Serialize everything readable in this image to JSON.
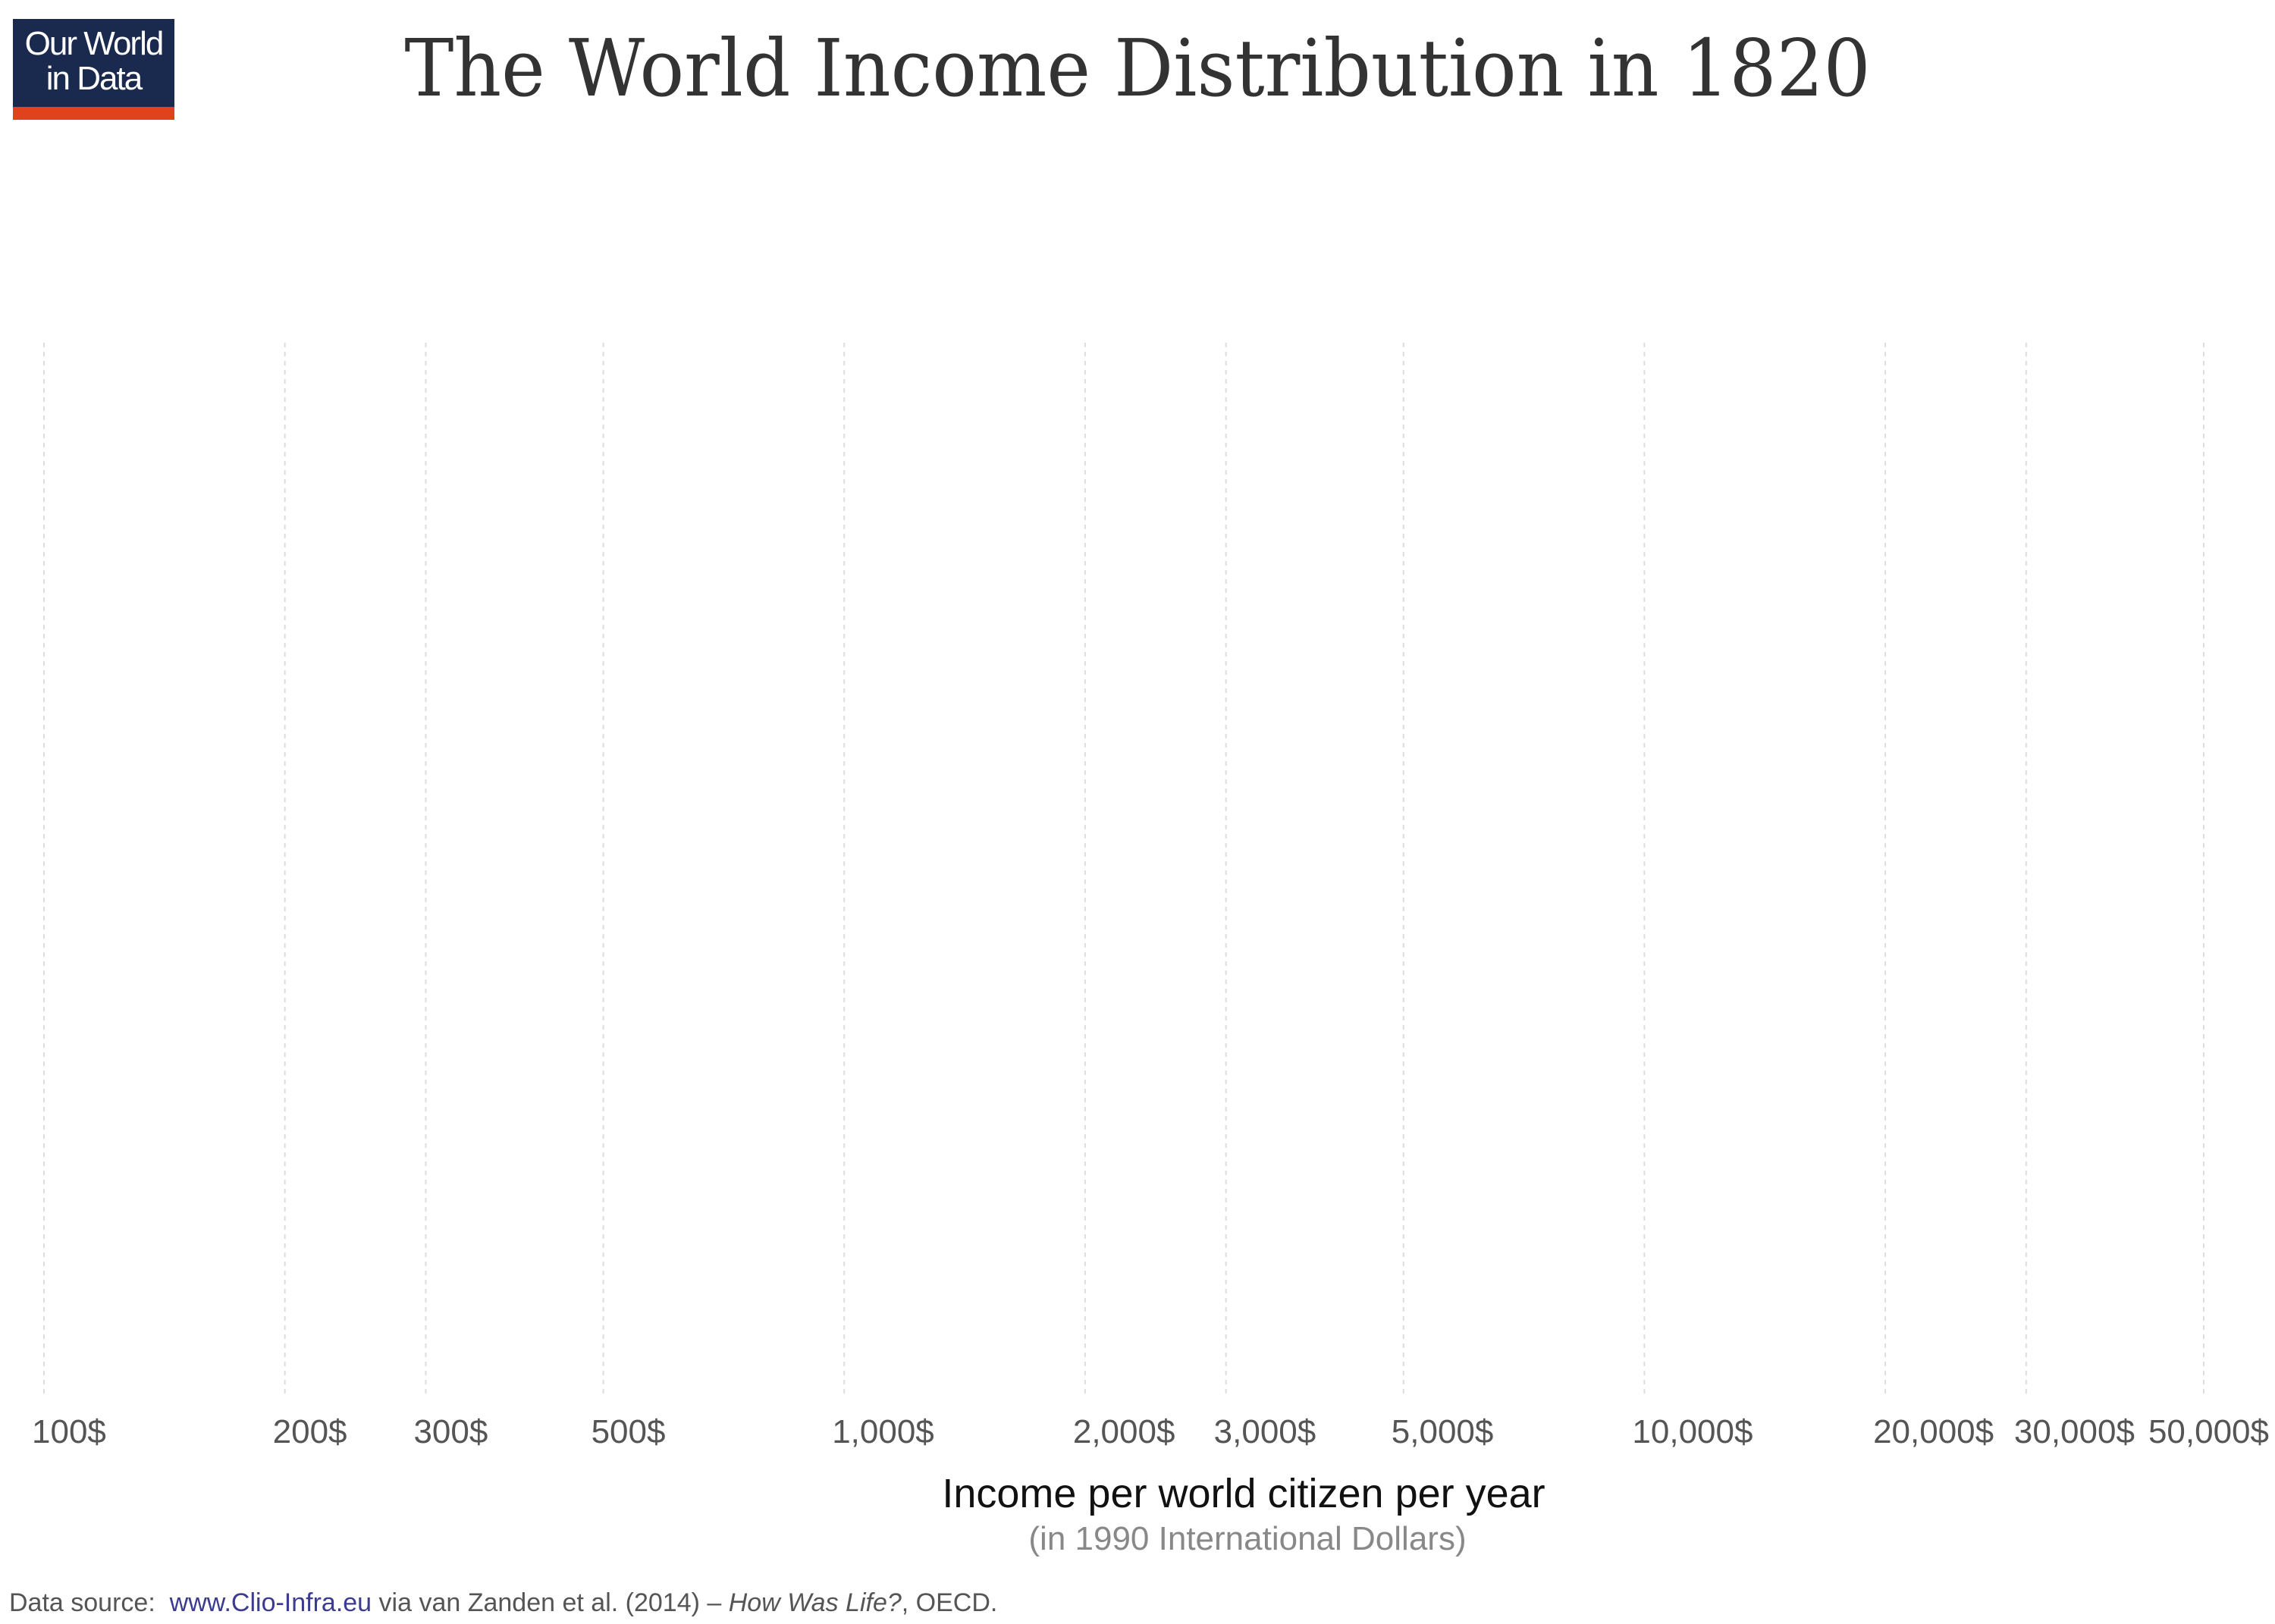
{
  "logo": {
    "line1": "Our World",
    "line2": "in Data"
  },
  "chart_data": {
    "type": "area",
    "title": "The World Income Distribution in 1820",
    "xlabel": "Income per world citizen per year",
    "xsublabel": "(in 1990 International Dollars)",
    "ylabel": "",
    "xscale": "log",
    "xlim": [
      100,
      50000
    ],
    "x_ticks": [
      100,
      200,
      300,
      500,
      1000,
      2000,
      3000,
      5000,
      10000,
      20000,
      30000,
      50000
    ],
    "x_tick_labels": [
      "100$",
      "200$",
      "300$",
      "500$",
      "1,000$",
      "2,000$",
      "3,000$",
      "5,000$",
      "10,000$",
      "20,000$",
      "30,000$",
      "50,000$"
    ],
    "grid": "vertical dashed",
    "series": []
  },
  "source": {
    "prefix": "Data source:",
    "link": "www.Clio-Infra.eu",
    "middle": "via van Zanden et al. (2014) –",
    "italic": "How Was Life?",
    "suffix": ", OECD."
  }
}
